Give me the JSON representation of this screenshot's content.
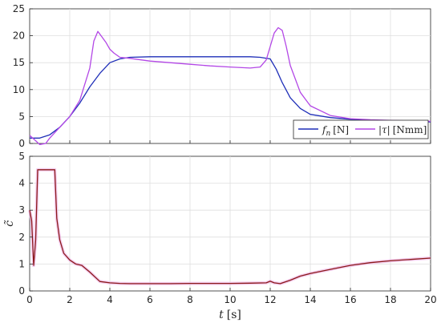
{
  "chart_data": [
    {
      "type": "line",
      "xlim": [
        0,
        20
      ],
      "ylim": [
        0,
        25
      ],
      "xticks": [
        0,
        2,
        4,
        6,
        8,
        10,
        12,
        14,
        16,
        18,
        20
      ],
      "yticks": [
        0,
        5,
        10,
        15,
        20,
        25
      ],
      "grid": true,
      "legend_position": "bottom-right",
      "series": [
        {
          "name": "fn [N]",
          "name_math": "f",
          "name_sub": "n",
          "name_unit": "[N]",
          "color": "#1f2fb8",
          "x": [
            0,
            0.5,
            1,
            1.5,
            2,
            2.5,
            3,
            3.5,
            4,
            4.5,
            5,
            6,
            7,
            8,
            9,
            10,
            11,
            11.5,
            12,
            12.3,
            12.6,
            13,
            13.5,
            14,
            15,
            16,
            17,
            18,
            19,
            20
          ],
          "y": [
            1.0,
            1.0,
            1.6,
            3.0,
            5.0,
            7.5,
            10.5,
            13.0,
            15.0,
            15.7,
            16.0,
            16.1,
            16.1,
            16.1,
            16.1,
            16.1,
            16.1,
            16.0,
            15.7,
            13.8,
            11.3,
            8.5,
            6.5,
            5.4,
            4.8,
            4.5,
            4.3,
            4.2,
            4.1,
            4.0
          ]
        },
        {
          "name": "|τ| [Nmm]",
          "name_math": "|τ|",
          "name_unit": "[Nmm]",
          "color": "#b347e6",
          "x": [
            0,
            0.3,
            0.5,
            0.8,
            1.0,
            1.5,
            2.0,
            2.5,
            3.0,
            3.2,
            3.4,
            3.6,
            3.8,
            4.0,
            4.2,
            4.5,
            5,
            6,
            7,
            8,
            9,
            10,
            11,
            11.5,
            11.8,
            12.0,
            12.2,
            12.4,
            12.6,
            12.8,
            13,
            13.5,
            14,
            15,
            16,
            17,
            18,
            19,
            20
          ],
          "y": [
            1.5,
            0.5,
            -0.2,
            0.0,
            1.0,
            3.0,
            5.0,
            8.0,
            14.0,
            19.0,
            20.8,
            19.8,
            18.8,
            17.5,
            16.8,
            16.0,
            15.8,
            15.3,
            15.0,
            14.7,
            14.4,
            14.2,
            14.0,
            14.2,
            15.5,
            18.0,
            20.5,
            21.5,
            21.0,
            18.0,
            14.5,
            9.5,
            7.0,
            5.2,
            4.6,
            4.4,
            4.3,
            4.2,
            4.1
          ]
        }
      ]
    },
    {
      "type": "line",
      "xlabel_math": "t",
      "xlabel_unit": "[s]",
      "ylabel_math": "c̃",
      "xlim": [
        0,
        20
      ],
      "ylim": [
        0,
        5
      ],
      "xticks": [
        0,
        2,
        4,
        6,
        8,
        10,
        12,
        14,
        16,
        18,
        20
      ],
      "yticks": [
        0,
        1,
        2,
        3,
        4,
        5
      ],
      "grid": true,
      "series": [
        {
          "color": "#8b1a1a",
          "shadow_color": "#f0b8e8",
          "x": [
            0,
            0.1,
            0.2,
            0.3,
            0.4,
            0.5,
            1.0,
            1.25,
            1.35,
            1.5,
            1.7,
            2.0,
            2.3,
            2.6,
            3.0,
            3.5,
            4.0,
            4.5,
            5,
            6,
            7,
            8,
            9,
            10,
            11,
            11.8,
            12.0,
            12.2,
            12.5,
            13,
            13.5,
            14,
            15,
            16,
            17,
            18,
            19,
            20
          ],
          "y": [
            3.0,
            2.6,
            0.95,
            1.9,
            4.5,
            4.5,
            4.5,
            4.5,
            2.7,
            1.9,
            1.4,
            1.15,
            1.0,
            0.95,
            0.7,
            0.35,
            0.3,
            0.28,
            0.27,
            0.27,
            0.27,
            0.28,
            0.28,
            0.28,
            0.29,
            0.3,
            0.36,
            0.3,
            0.27,
            0.4,
            0.55,
            0.65,
            0.8,
            0.95,
            1.05,
            1.12,
            1.17,
            1.22
          ]
        }
      ]
    }
  ],
  "tick_labels_top_y": [
    "0",
    "5",
    "10",
    "15",
    "20",
    "25"
  ],
  "tick_labels_bottom_y": [
    "0",
    "1",
    "2",
    "3",
    "4",
    "5"
  ],
  "tick_labels_x": [
    "0",
    "2",
    "4",
    "6",
    "8",
    "10",
    "12",
    "14",
    "16",
    "18",
    "20"
  ]
}
